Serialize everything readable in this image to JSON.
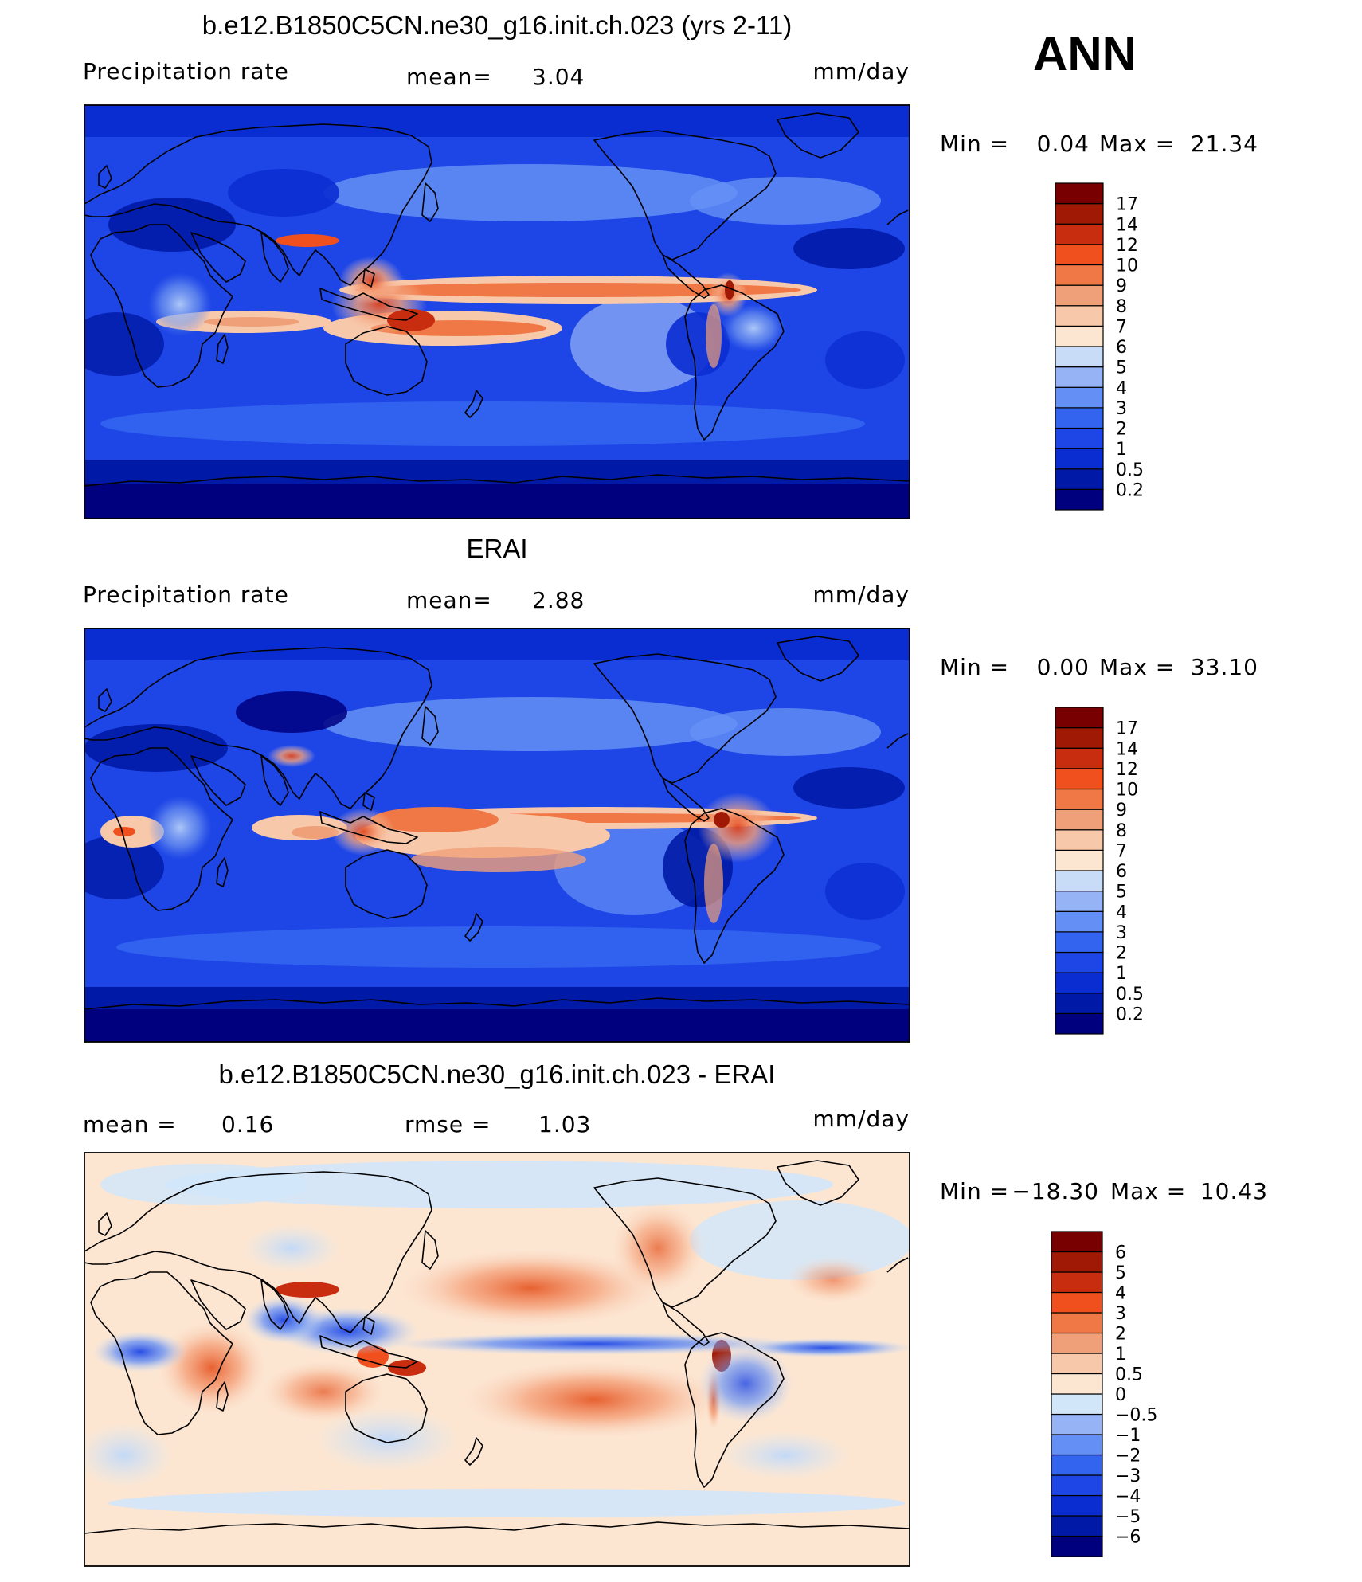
{
  "season": "ANN",
  "panels": [
    {
      "title": "b.e12.B1850C5CN.ne30_g16.init.ch.023 (yrs 2-11)",
      "left_label": "Precipitation  rate",
      "mid_label": "mean=",
      "mid_value": "3.04",
      "units": "mm/day",
      "min_label": "Min  =",
      "min_value": "0.04",
      "max_label": "Max  =",
      "max_value": "21.34",
      "colorbar": {
        "levels": [
          "0.2",
          "0.5",
          "1",
          "2",
          "3",
          "4",
          "5",
          "6",
          "7",
          "8",
          "9",
          "10",
          "12",
          "14",
          "17"
        ],
        "colors": [
          "#00007f",
          "#0019a6",
          "#0a2dd2",
          "#1e46e6",
          "#3264f0",
          "#6490f5",
          "#96b4f5",
          "#c8dcf8",
          "#fce6d2",
          "#f8c8aa",
          "#f0a078",
          "#f07846",
          "#f0501e",
          "#c82d0f",
          "#a01905",
          "#780000"
        ]
      }
    },
    {
      "title": "ERAI",
      "left_label": "Precipitation  rate",
      "mid_label": "mean=",
      "mid_value": "2.88",
      "units": "mm/day",
      "min_label": "Min  =",
      "min_value": "0.00",
      "max_label": "Max  =",
      "max_value": "33.10",
      "colorbar": {
        "levels": [
          "0.2",
          "0.5",
          "1",
          "2",
          "3",
          "4",
          "5",
          "6",
          "7",
          "8",
          "9",
          "10",
          "12",
          "14",
          "17"
        ],
        "colors": [
          "#00007f",
          "#0019a6",
          "#0a2dd2",
          "#1e46e6",
          "#3264f0",
          "#6490f5",
          "#96b4f5",
          "#c8dcf8",
          "#fce6d2",
          "#f8c8aa",
          "#f0a078",
          "#f07846",
          "#f0501e",
          "#c82d0f",
          "#a01905",
          "#780000"
        ]
      }
    },
    {
      "title": "b.e12.B1850C5CN.ne30_g16.init.ch.023 - ERAI",
      "left_label": "mean  =",
      "left_value": "0.16",
      "mid_label": "rmse  =",
      "mid_value": "1.03",
      "units": "mm/day",
      "min_label": "Min  =",
      "min_value": "−18.30",
      "max_label": "Max  =",
      "max_value": "10.43",
      "colorbar": {
        "levels": [
          "−6",
          "−5",
          "−4",
          "−3",
          "−2",
          "−1",
          "−0.5",
          "0",
          "0.5",
          "1",
          "2",
          "3",
          "4",
          "5",
          "6"
        ],
        "colors": [
          "#00007f",
          "#0019a6",
          "#0a2dd2",
          "#1e46e6",
          "#3264f0",
          "#6490f5",
          "#96b4f5",
          "#d2e6fa",
          "#fce6d2",
          "#f8c8aa",
          "#f0a078",
          "#f07846",
          "#f0501e",
          "#c82d0f",
          "#a01905",
          "#780000"
        ]
      }
    }
  ]
}
